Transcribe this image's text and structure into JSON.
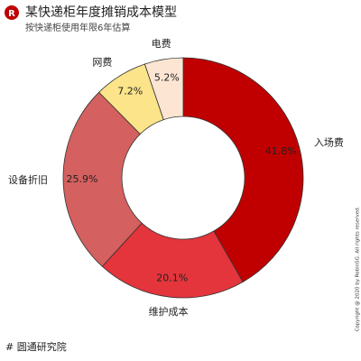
{
  "header": {
    "logo": "R",
    "title": "某快递柜年度摊销成本模型",
    "subtitle": "按快递柜使用年限6年估算"
  },
  "chart_data": {
    "type": "donut",
    "categories": [
      "入场费",
      "维护成本",
      "设备折旧",
      "网费",
      "电费"
    ],
    "values": [
      41.8,
      20.1,
      25.9,
      7.2,
      5.2
    ],
    "value_labels": [
      "41.8%",
      "20.1%",
      "25.9%",
      "7.2%",
      "5.2%"
    ],
    "colors": [
      "#c00000",
      "#e4343c",
      "#d4605f",
      "#fbe489",
      "#fde5d3"
    ]
  },
  "footer": {
    "source": "# 圆通研究院",
    "copyright": "Copyright @ 2020 by RobinSG. All rights reserved."
  }
}
